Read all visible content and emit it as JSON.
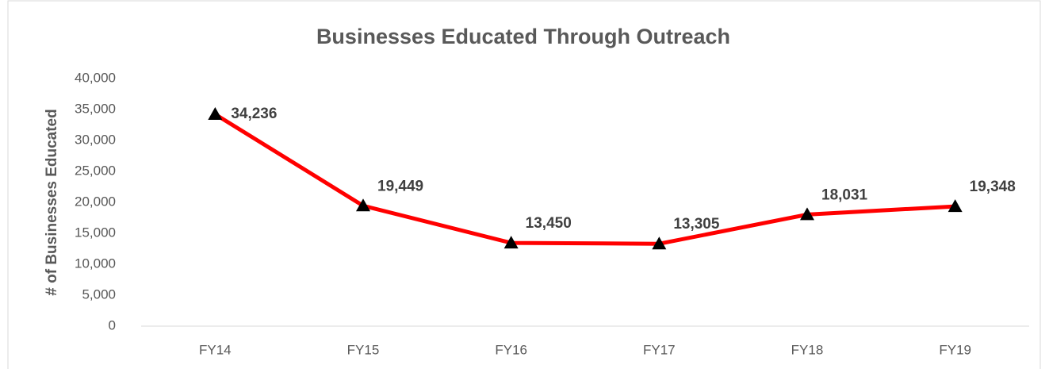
{
  "chart_data": {
    "type": "line",
    "title": "Businesses Educated Through Outreach",
    "ylabel": "# of Businesses Educated",
    "categories": [
      "FY14",
      "FY15",
      "FY16",
      "FY17",
      "FY18",
      "FY19"
    ],
    "values": [
      34236,
      19449,
      13450,
      13305,
      18031,
      19348
    ],
    "value_labels": [
      "34,236",
      "19,449",
      "13,450",
      "13,305",
      "18,031",
      "19,348"
    ],
    "color": "#ff0000",
    "marker_color": "#000000",
    "ylim": [
      0,
      40000
    ],
    "yticks": [
      0,
      {
        "value": 5000,
        "label": "5,000"
      },
      {
        "value": 10000,
        "label": "10,000"
      },
      {
        "value": 15000,
        "label": "15,000"
      },
      {
        "value": 20000,
        "label": "20,000"
      },
      {
        "value": 25000,
        "label": "25,000"
      },
      {
        "value": 30000,
        "label": "30,000"
      },
      {
        "value": 35000,
        "label": "35,000"
      },
      {
        "value": 40000,
        "label": "40,000"
      }
    ],
    "grid": false
  }
}
